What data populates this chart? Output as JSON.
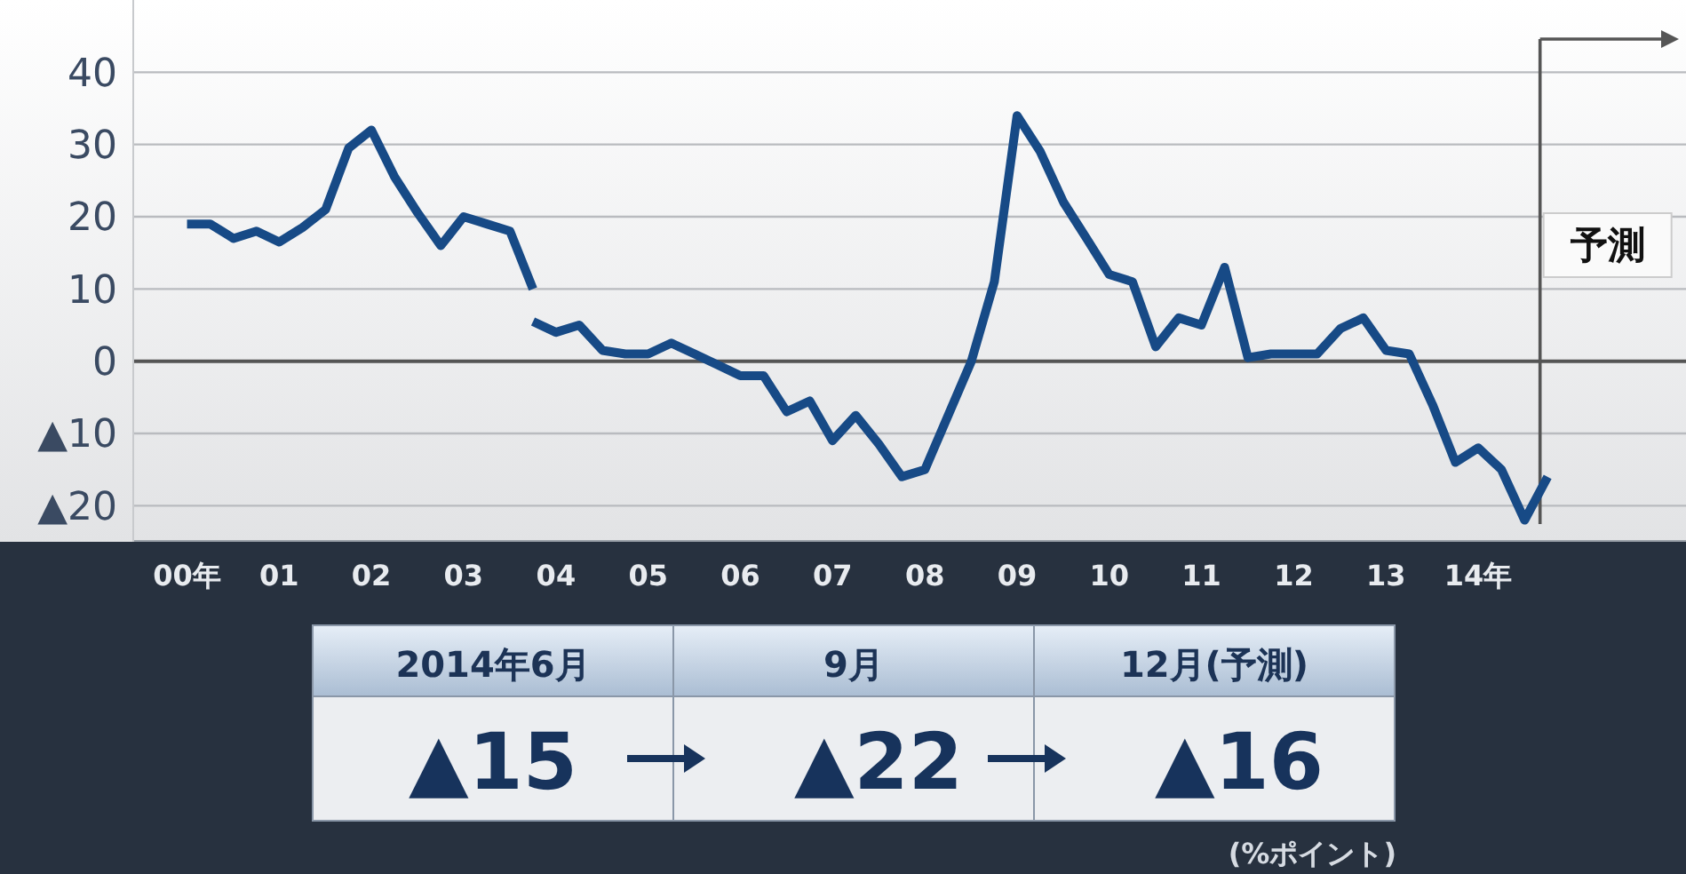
{
  "chart_data": {
    "type": "line",
    "xlim": [
      "1999-08",
      "2016-06"
    ],
    "xticks": [
      {
        "value": "2000-03",
        "label": "00年"
      },
      {
        "value": "2001-03",
        "label": "01"
      },
      {
        "value": "2002-03",
        "label": "02"
      },
      {
        "value": "2003-03",
        "label": "03"
      },
      {
        "value": "2004-03",
        "label": "04"
      },
      {
        "value": "2005-03",
        "label": "05"
      },
      {
        "value": "2006-03",
        "label": "06"
      },
      {
        "value": "2007-03",
        "label": "07"
      },
      {
        "value": "2008-03",
        "label": "08"
      },
      {
        "value": "2009-03",
        "label": "09"
      },
      {
        "value": "2010-03",
        "label": "10"
      },
      {
        "value": "2011-03",
        "label": "11"
      },
      {
        "value": "2012-03",
        "label": "12"
      },
      {
        "value": "2013-03",
        "label": "13"
      },
      {
        "value": "2014-03",
        "label": "14年"
      }
    ],
    "ylim": [
      -25,
      50
    ],
    "yticks": [
      {
        "value": -20,
        "label": "▲20"
      },
      {
        "value": -10,
        "label": "▲10"
      },
      0,
      10,
      20,
      30,
      40
    ],
    "grid": "y",
    "ref_lines": [
      {
        "axis": "x",
        "value": "2014-11",
        "label": "予測"
      }
    ],
    "annotations": [
      "2014年6月",
      "9月",
      "12月(予測)",
      "▲15",
      "▲22",
      "▲16",
      "(%ポイント)"
    ],
    "series": [
      {
        "color": "#174a86",
        "x": [
          "2000-03",
          "2000-06",
          "2000-09",
          "2000-12",
          "2001-03",
          "2001-06",
          "2001-09",
          "2001-12",
          "2002-03",
          "2002-06",
          "2002-09",
          "2002-12",
          "2003-03",
          "2003-06",
          "2003-09",
          "2003-12"
        ],
        "values": [
          19,
          19,
          17,
          18,
          16.5,
          18.5,
          21,
          29.5,
          32,
          25.5,
          20.5,
          16,
          20,
          19,
          18,
          10
        ]
      },
      {
        "color": "#174a86",
        "x": [
          "2003-12",
          "2004-03",
          "2004-06",
          "2004-09",
          "2004-12",
          "2005-03",
          "2005-06",
          "2005-09",
          "2005-12",
          "2006-03",
          "2006-06",
          "2006-09",
          "2006-12",
          "2007-03",
          "2007-06",
          "2007-09",
          "2007-12",
          "2008-03",
          "2008-06",
          "2008-09",
          "2008-12",
          "2009-03",
          "2009-06",
          "2009-09",
          "2009-12",
          "2010-03",
          "2010-06",
          "2010-09",
          "2010-12",
          "2011-03",
          "2011-06",
          "2011-09",
          "2011-12",
          "2012-03",
          "2012-06",
          "2012-09",
          "2012-12",
          "2013-03",
          "2013-06",
          "2013-09",
          "2013-12",
          "2014-03",
          "2014-06",
          "2014-09",
          "2014-12"
        ],
        "values": [
          5.5,
          4,
          5,
          1.5,
          1,
          1,
          2.5,
          1,
          -0.5,
          -2,
          -2,
          -7,
          -5.5,
          -11,
          -7.5,
          -11.5,
          -16,
          -15,
          -7.5,
          0,
          11,
          34,
          29,
          22,
          17,
          12,
          11,
          2,
          6,
          5,
          13,
          0.5,
          1,
          1,
          1,
          4.5,
          6,
          1.5,
          1,
          -6,
          -14,
          -12,
          -15,
          -22,
          -16
        ]
      }
    ]
  }
}
